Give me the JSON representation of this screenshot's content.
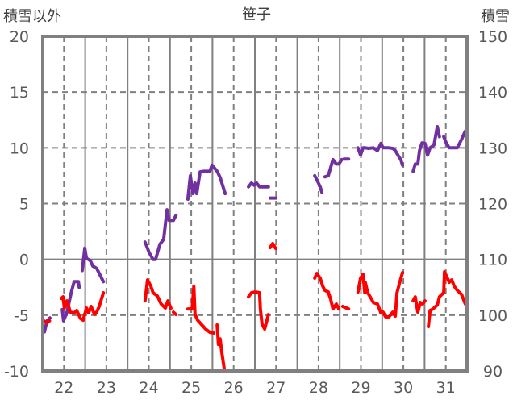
{
  "chart_data": {
    "type": "line",
    "title": "笹子",
    "left_axis_label": "積雪以外",
    "right_axis_label": "積雪",
    "xlim": [
      21.5,
      31.5
    ],
    "ylim_left": [
      -10,
      20
    ],
    "ylim_right": [
      90,
      150
    ],
    "x_ticks": [
      "22",
      "23",
      "24",
      "25",
      "26",
      "27",
      "28",
      "29",
      "30",
      "31"
    ],
    "y_ticks_left": [
      "20",
      "15",
      "10",
      "5",
      "0",
      "-5",
      "-10"
    ],
    "y_ticks_right": [
      "150",
      "140",
      "130",
      "120",
      "110",
      "100",
      "90"
    ],
    "grid": true,
    "colors": {
      "snow": "#7030A0",
      "other": "#FF0000",
      "grid": "#808080"
    },
    "series": [
      {
        "axis": "right",
        "color": "#7030A0",
        "segments": [
          [
            [
              21.54,
              97
            ],
            [
              21.6,
              99
            ],
            [
              21.67,
              99.5
            ]
          ],
          [
            [
              21.96,
              101
            ],
            [
              21.99,
              99
            ],
            [
              22.07,
              100.5
            ],
            [
              22.17,
              104
            ],
            [
              22.24,
              106
            ],
            [
              22.34,
              106
            ],
            [
              22.36,
              105
            ]
          ],
          [
            [
              22.43,
              108
            ],
            [
              22.49,
              112
            ],
            [
              22.53,
              110.2
            ],
            [
              22.62,
              109.8
            ],
            [
              22.68,
              108.8
            ],
            [
              22.77,
              108.4
            ],
            [
              22.93,
              106
            ]
          ],
          [
            [
              23.91,
              113.1
            ],
            [
              24.01,
              111.2
            ],
            [
              24.1,
              110
            ],
            [
              24.16,
              110
            ],
            [
              24.26,
              112.7
            ],
            [
              24.35,
              113.6
            ],
            [
              24.43,
              118.9
            ],
            [
              24.48,
              117
            ],
            [
              24.58,
              117
            ],
            [
              24.64,
              117.9
            ]
          ],
          [
            [
              24.92,
              120.8
            ],
            [
              24.98,
              125
            ],
            [
              25.04,
              121.8
            ],
            [
              25.09,
              123.7
            ],
            [
              25.13,
              121.8
            ],
            [
              25.21,
              125.7
            ],
            [
              25.3,
              125.8
            ],
            [
              25.44,
              125.8
            ],
            [
              25.49,
              126.9
            ],
            [
              25.61,
              125.8
            ],
            [
              25.68,
              124.7
            ],
            [
              25.8,
              121.8
            ]
          ],
          [
            [
              26.35,
              123
            ],
            [
              26.42,
              123.7
            ],
            [
              26.48,
              123.3
            ],
            [
              26.54,
              123.7
            ],
            [
              26.61,
              123
            ],
            [
              26.82,
              123
            ]
          ],
          [
            [
              26.86,
              121
            ],
            [
              26.99,
              121
            ]
          ],
          [
            [
              27.91,
              125
            ],
            [
              27.96,
              124.3
            ],
            [
              28.04,
              123
            ],
            [
              28.08,
              122
            ]
          ],
          [
            [
              28.15,
              124.8
            ],
            [
              28.23,
              125
            ],
            [
              28.29,
              126.6
            ],
            [
              28.34,
              127.9
            ],
            [
              28.42,
              127.1
            ],
            [
              28.48,
              127.1
            ],
            [
              28.55,
              127.9
            ]
          ],
          [
            [
              28.6,
              128
            ],
            [
              28.71,
              128
            ]
          ],
          [
            [
              28.93,
              130
            ],
            [
              28.99,
              128.7
            ],
            [
              29.05,
              130
            ],
            [
              29.1,
              130
            ],
            [
              29.18,
              129.9
            ],
            [
              29.29,
              130
            ],
            [
              29.39,
              129.5
            ],
            [
              29.47,
              130.8
            ],
            [
              29.52,
              130
            ],
            [
              29.66,
              130
            ],
            [
              29.75,
              129.9
            ],
            [
              29.81,
              129.5
            ],
            [
              29.87,
              128.7
            ],
            [
              29.94,
              127.9
            ],
            [
              29.98,
              126.9
            ]
          ],
          [
            [
              30.23,
              125.8
            ],
            [
              30.28,
              127.1
            ],
            [
              30.34,
              127.1
            ],
            [
              30.38,
              129.5
            ],
            [
              30.44,
              130.9
            ],
            [
              30.51,
              130.8
            ],
            [
              30.57,
              128.7
            ],
            [
              30.63,
              130
            ],
            [
              30.72,
              130.5
            ],
            [
              30.8,
              133.8
            ],
            [
              30.85,
              132
            ]
          ],
          [
            [
              30.95,
              132
            ],
            [
              31.01,
              130.9
            ],
            [
              31.08,
              130
            ],
            [
              31.27,
              130
            ],
            [
              31.37,
              131.5
            ],
            [
              31.46,
              133
            ]
          ]
        ]
      },
      {
        "axis": "left",
        "color": "#FF0000",
        "segments": [
          [
            [
              21.52,
              -5.5
            ],
            [
              21.6,
              -5.7
            ],
            [
              21.66,
              -5.5
            ]
          ],
          [
            [
              21.94,
              -3.5
            ],
            [
              21.98,
              -3.36
            ],
            [
              22.01,
              -4.37
            ],
            [
              22.07,
              -3.72
            ],
            [
              22.15,
              -4.73
            ],
            [
              22.24,
              -4.8
            ],
            [
              22.3,
              -4.58
            ],
            [
              22.39,
              -5.3
            ],
            [
              22.45,
              -5.45
            ],
            [
              22.53,
              -4.37
            ],
            [
              22.58,
              -4.8
            ],
            [
              22.64,
              -4.22
            ],
            [
              22.72,
              -4.94
            ],
            [
              22.77,
              -4.73
            ],
            [
              22.83,
              -4.22
            ],
            [
              22.93,
              -2.99
            ]
          ],
          [
            [
              23.91,
              -3.72
            ],
            [
              23.97,
              -1.84
            ],
            [
              24.05,
              -2.42
            ],
            [
              24.1,
              -2.99
            ],
            [
              24.2,
              -3.28
            ],
            [
              24.29,
              -4.0
            ],
            [
              24.39,
              -4.37
            ],
            [
              24.45,
              -3.72
            ],
            [
              24.52,
              -4.37
            ]
          ],
          [
            [
              24.58,
              -4.73
            ],
            [
              24.64,
              -4.94
            ]
          ],
          [
            [
              24.92,
              -4.44
            ],
            [
              25.02,
              -4.44
            ],
            [
              25.06,
              -2.42
            ],
            [
              25.09,
              -4.94
            ],
            [
              25.15,
              -5.45
            ],
            [
              25.25,
              -5.88
            ],
            [
              25.34,
              -6.25
            ],
            [
              25.44,
              -6.54
            ],
            [
              25.53,
              -6.6
            ]
          ],
          [
            [
              25.61,
              -5.88
            ],
            [
              25.64,
              -7.62
            ],
            [
              25.68,
              -7.12
            ],
            [
              25.72,
              -8.34
            ],
            [
              25.78,
              -9.86
            ]
          ],
          [
            [
              26.35,
              -3.36
            ],
            [
              26.42,
              -2.99
            ],
            [
              26.52,
              -2.92
            ],
            [
              26.61,
              -2.99
            ],
            [
              26.63,
              -4.44
            ],
            [
              26.67,
              -5.81
            ],
            [
              26.73,
              -6.25
            ],
            [
              26.82,
              -4.94
            ]
          ],
          [
            [
              26.86,
              1.06
            ],
            [
              26.92,
              1.42
            ],
            [
              26.99,
              0.98
            ]
          ],
          [
            [
              27.91,
              -1.69
            ],
            [
              27.96,
              -1.26
            ],
            [
              28.04,
              -1.69
            ],
            [
              28.1,
              -2.42
            ],
            [
              28.15,
              -2.78
            ],
            [
              28.23,
              -2.92
            ],
            [
              28.29,
              -3.64
            ],
            [
              28.34,
              -4.44
            ],
            [
              28.42,
              -4.0
            ],
            [
              28.48,
              -4.44
            ]
          ],
          [
            [
              28.57,
              -4.22
            ],
            [
              28.71,
              -4.44
            ]
          ],
          [
            [
              28.93,
              -2.92
            ],
            [
              28.99,
              -1.69
            ],
            [
              29.05,
              -1.33
            ],
            [
              29.09,
              -2.99
            ],
            [
              29.1,
              -2.05
            ],
            [
              29.16,
              -2.99
            ],
            [
              29.24,
              -3.5
            ],
            [
              29.29,
              -3.86
            ],
            [
              29.39,
              -4.0
            ],
            [
              29.47,
              -4.8
            ],
            [
              29.52,
              -4.73
            ],
            [
              29.58,
              -5.16
            ],
            [
              29.66,
              -5.16
            ],
            [
              29.75,
              -4.73
            ],
            [
              29.81,
              -5.09
            ],
            [
              29.85,
              -2.99
            ],
            [
              29.9,
              -2.27
            ],
            [
              29.98,
              -1.19
            ]
          ],
          [
            [
              30.23,
              -3.72
            ],
            [
              30.28,
              -3.36
            ],
            [
              30.34,
              -4.73
            ],
            [
              30.4,
              -3.86
            ],
            [
              30.45,
              -4.0
            ],
            [
              30.51,
              -3.72
            ]
          ],
          [
            [
              30.59,
              -6.03
            ],
            [
              30.63,
              -4.58
            ],
            [
              30.7,
              -4.44
            ],
            [
              30.8,
              -4.08
            ],
            [
              30.85,
              -3.36
            ],
            [
              30.95,
              -2.99
            ],
            [
              30.97,
              -1.11
            ],
            [
              31.02,
              -1.55
            ],
            [
              31.08,
              -2.05
            ],
            [
              31.14,
              -1.84
            ],
            [
              31.2,
              -2.42
            ],
            [
              31.27,
              -2.78
            ],
            [
              31.37,
              -3.14
            ],
            [
              31.46,
              -4.0
            ]
          ]
        ]
      }
    ]
  }
}
